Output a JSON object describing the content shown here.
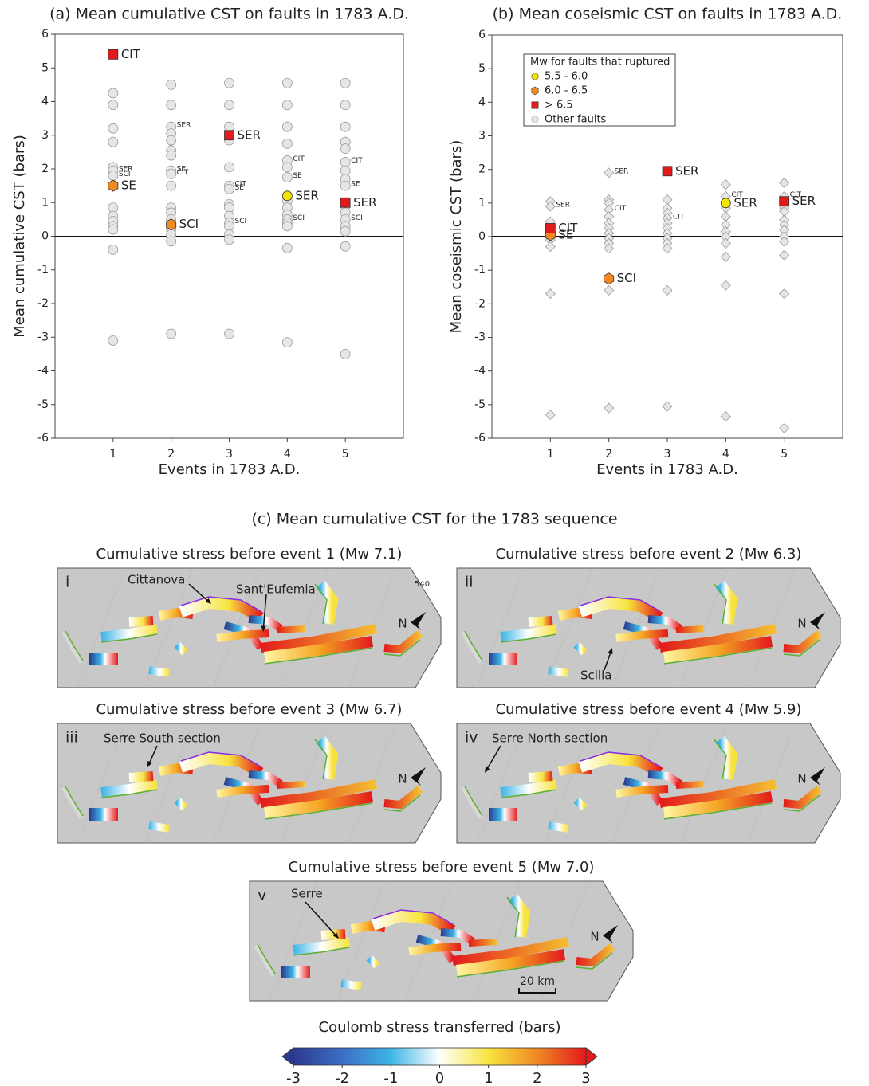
{
  "chart_data": [
    {
      "type": "scatter",
      "title": "(a) Mean cumulative CST on faults in 1783 A.D.",
      "xlabel": "Events in 1783 A.D.",
      "ylabel": "Mean cumulative CST (bars)",
      "xlim": [
        0,
        6
      ],
      "ylim": [
        -6,
        6
      ],
      "xticks": [
        1,
        2,
        3,
        4,
        5
      ],
      "yticks": [
        -6,
        -5,
        -4,
        -3,
        -2,
        -1,
        0,
        1,
        2,
        3,
        4,
        5,
        6
      ],
      "hlines": [
        0
      ],
      "series": [
        {
          "color": "#e6e6e6",
          "marker": "circle",
          "x": [
            1,
            1,
            1,
            1,
            1,
            1,
            1,
            1,
            1,
            1,
            1,
            1,
            1,
            1,
            2,
            2,
            2,
            2,
            2,
            2,
            2,
            2,
            2,
            2,
            2,
            2,
            2,
            2,
            2,
            2,
            2,
            3,
            3,
            3,
            3,
            3,
            3,
            3,
            3,
            3,
            3,
            3,
            3,
            3,
            3,
            3,
            4,
            4,
            4,
            4,
            4,
            4,
            4,
            4,
            4,
            4,
            4,
            4,
            4,
            4,
            4,
            5,
            5,
            5,
            5,
            5,
            5,
            5,
            5,
            5,
            5,
            5,
            5,
            5,
            5,
            5,
            5
          ],
          "values": [
            4.25,
            3.9,
            3.2,
            2.8,
            2.05,
            1.95,
            1.8,
            0.85,
            0.6,
            0.45,
            0.3,
            0.2,
            -0.4,
            -3.1,
            4.5,
            3.9,
            3.25,
            3.05,
            2.85,
            2.55,
            2.4,
            1.95,
            1.85,
            1.5,
            0.85,
            0.7,
            0.5,
            0.2,
            0.05,
            -0.15,
            -2.9,
            4.55,
            3.9,
            3.25,
            2.85,
            2.05,
            1.5,
            1.4,
            0.95,
            0.85,
            0.6,
            0.4,
            0.3,
            0.05,
            -0.1,
            -2.9,
            4.55,
            3.9,
            3.25,
            2.75,
            2.25,
            2.05,
            1.75,
            1.05,
            0.85,
            0.65,
            0.5,
            0.4,
            0.3,
            -0.35,
            -3.15,
            4.55,
            3.9,
            3.25,
            2.8,
            2.6,
            2.2,
            1.95,
            1.7,
            1.5,
            0.9,
            0.7,
            0.5,
            0.3,
            0.15,
            -0.3,
            -3.5
          ],
          "labels": [
            null,
            null,
            null,
            null,
            null,
            "SER",
            "SCI",
            null,
            null,
            null,
            null,
            null,
            null,
            null,
            null,
            null,
            "SER",
            null,
            null,
            null,
            null,
            "SE",
            "CIT",
            null,
            null,
            null,
            null,
            null,
            null,
            null,
            null,
            null,
            null,
            null,
            null,
            null,
            "CIT",
            "SE",
            null,
            null,
            null,
            "SCI",
            null,
            null,
            null,
            null,
            null,
            null,
            null,
            null,
            "CIT",
            null,
            "SE",
            null,
            null,
            null,
            "SCI",
            null,
            null,
            null,
            null,
            null,
            null,
            null,
            null,
            null,
            "CIT",
            null,
            null,
            "SE",
            null,
            null,
            "SCI",
            null,
            null,
            null,
            null
          ]
        },
        {
          "color": "#f2e500",
          "marker": "circle",
          "x": [
            4
          ],
          "values": [
            1.2
          ],
          "labels": [
            "SER"
          ]
        },
        {
          "color": "#f08a24",
          "marker": "hexagon",
          "x": [
            1,
            2
          ],
          "values": [
            1.5,
            0.35
          ],
          "labels": [
            "SE",
            "SCI"
          ]
        },
        {
          "color": "#e31a1c",
          "marker": "square",
          "x": [
            1,
            3,
            5
          ],
          "values": [
            5.4,
            3.0,
            1.0
          ],
          "labels": [
            "CIT",
            "SER",
            "SER"
          ]
        }
      ]
    },
    {
      "type": "scatter",
      "title": "(b) Mean coseismic CST on faults in 1783 A.D.",
      "xlabel": "Events in 1783 A.D.",
      "ylabel": "Mean coseismic CST (bars)",
      "xlim": [
        0,
        6
      ],
      "ylim": [
        -6,
        6
      ],
      "xticks": [
        1,
        2,
        3,
        4,
        5
      ],
      "yticks": [
        -6,
        -5,
        -4,
        -3,
        -2,
        -1,
        0,
        1,
        2,
        3,
        4,
        5,
        6
      ],
      "hlines": [
        0
      ],
      "legend": "upper left",
      "legend_title": "Mw for faults that ruptured",
      "series": [
        {
          "name": "5.5 - 6.0",
          "color": "#f2e500",
          "marker": "circle",
          "x": [
            4
          ],
          "values": [
            1.0
          ],
          "labels": [
            "SER"
          ]
        },
        {
          "name": "6.0 - 6.5",
          "color": "#f08a24",
          "marker": "hexagon",
          "x": [
            1,
            2
          ],
          "values": [
            0.05,
            -1.25
          ],
          "labels": [
            "SE",
            "SCI"
          ]
        },
        {
          "name": "> 6.5",
          "color": "#e31a1c",
          "marker": "square",
          "x": [
            1,
            3,
            5
          ],
          "values": [
            0.25,
            1.95,
            1.05
          ],
          "labels": [
            "CIT",
            "SER",
            "SER"
          ]
        },
        {
          "name": "Other faults",
          "color": "#e6e6e6",
          "marker": "diamond",
          "x": [
            1,
            1,
            1,
            1,
            1,
            1,
            1,
            2,
            2,
            2,
            2,
            2,
            2,
            2,
            2,
            2,
            2,
            2,
            2,
            2,
            3,
            3,
            3,
            3,
            3,
            3,
            3,
            3,
            3,
            3,
            3,
            3,
            4,
            4,
            4,
            4,
            4,
            4,
            4,
            4,
            4,
            4,
            4,
            5,
            5,
            5,
            5,
            5,
            5,
            5,
            5,
            5,
            5,
            5,
            5
          ],
          "values": [
            1.05,
            0.9,
            0.45,
            -0.1,
            -0.3,
            -1.7,
            -5.3,
            1.9,
            1.1,
            1.0,
            0.8,
            0.6,
            0.4,
            0.25,
            0.1,
            -0.05,
            -0.2,
            -0.35,
            -1.6,
            -5.1,
            1.1,
            0.85,
            0.7,
            0.55,
            0.4,
            0.25,
            0.1,
            -0.05,
            -0.2,
            -0.35,
            -1.6,
            -5.05,
            1.55,
            1.2,
            0.85,
            0.6,
            0.35,
            0.15,
            0,
            -0.2,
            -0.6,
            -1.45,
            -5.35,
            1.6,
            1.2,
            0.85,
            0.75,
            0.5,
            0.35,
            0.2,
            0,
            -0.15,
            -0.55,
            -1.7,
            -5.7
          ],
          "labels": [
            null,
            "SER",
            null,
            null,
            null,
            null,
            null,
            "SER",
            null,
            null,
            "CIT",
            null,
            null,
            null,
            null,
            null,
            null,
            null,
            null,
            null,
            null,
            null,
            null,
            "CIT",
            null,
            null,
            null,
            null,
            null,
            null,
            null,
            null,
            null,
            "CIT",
            null,
            null,
            null,
            null,
            null,
            null,
            null,
            null,
            null,
            null,
            "CIT",
            null,
            null,
            null,
            null,
            null,
            null,
            null,
            null,
            null,
            null
          ]
        }
      ]
    }
  ],
  "panel_c": {
    "title": "(c) Mean cumulative CST for the 1783 sequence",
    "north_label": "N",
    "maps": [
      {
        "numeral": "i",
        "title": "Cumulative stress before event 1 (Mw 7.1)",
        "annotations": [
          "Cittanova",
          "Sant'Eufemia",
          "540"
        ]
      },
      {
        "numeral": "ii",
        "title": "Cumulative stress before event 2 (Mw 6.3)",
        "annotations": [
          "Scilla"
        ]
      },
      {
        "numeral": "iii",
        "title": "Cumulative stress before event 3 (Mw 6.7)",
        "annotations": [
          "Serre South section"
        ]
      },
      {
        "numeral": "iv",
        "title": "Cumulative stress before event 4 (Mw 5.9)",
        "annotations": [
          "Serre North section"
        ]
      },
      {
        "numeral": "v",
        "title": "Cumulative stress before event 5 (Mw 7.0)",
        "annotations": [
          "Serre"
        ],
        "scale_bar": "20 km"
      }
    ],
    "colorbar": {
      "title": "Coulomb stress transferred (bars)",
      "lim": [
        -3,
        3
      ],
      "ticks": [
        -3,
        -2,
        -1,
        0,
        1,
        2,
        3
      ]
    }
  }
}
